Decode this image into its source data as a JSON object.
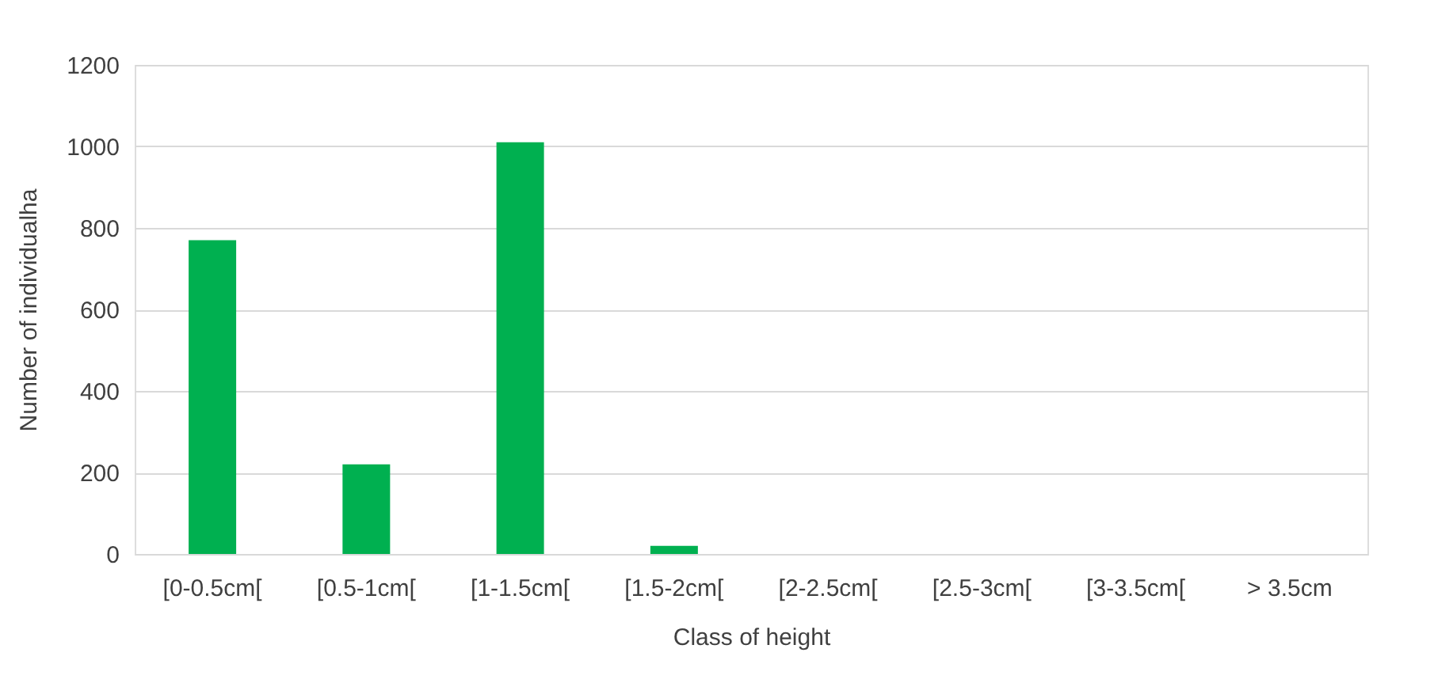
{
  "chart_data": {
    "type": "bar",
    "xlabel": "Class of height",
    "ylabel": "Number of individualha",
    "categories": [
      "[0-0.5cm[",
      "[0.5-1cm[",
      "[1-1.5cm[",
      "[1.5-2cm[",
      "[2-2.5cm[",
      "[2.5-3cm[",
      "[3-3.5cm[",
      "> 3.5cm"
    ],
    "values": [
      770,
      220,
      1010,
      20,
      0,
      0,
      0,
      0
    ],
    "color": "#00b050",
    "ylim": [
      0,
      1200
    ],
    "yticks": [
      0,
      200,
      400,
      600,
      800,
      1000,
      1200
    ],
    "grid": "y"
  }
}
